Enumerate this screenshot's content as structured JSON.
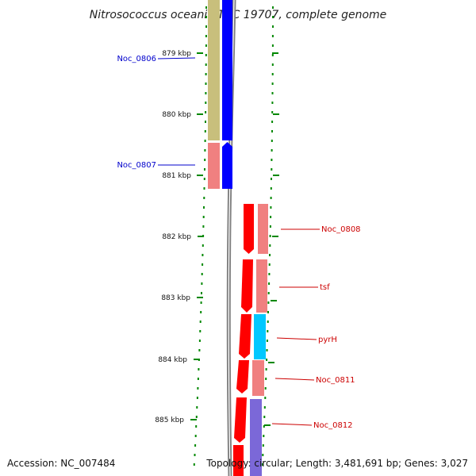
{
  "title": "Nitrosococcus oceani ATCC 19707, complete genome",
  "footer": {
    "accession": "Accession: NC_007484",
    "summary": "Topology: circular; Length: 3,481,691 bp; Genes: 3,027"
  },
  "colors": {
    "forward_strand": "#ff0000",
    "reverse_strand": "#0000ff",
    "cog_olive": "#c8bf7c",
    "cog_pink": "#f08080",
    "cog_cyan": "#00c8ff",
    "cog_purple": "#7b68d8",
    "tick_green": "#008800",
    "backbone": "#808080"
  },
  "kbp_ticks": [
    "879 kbp",
    "880 kbp",
    "881 kbp",
    "882 kbp",
    "883 kbp",
    "884 kbp",
    "885 kbp"
  ],
  "genes": [
    {
      "id": "Noc_0806",
      "strand": "reverse",
      "cog_color": "olive"
    },
    {
      "id": "Noc_0807",
      "strand": "reverse",
      "cog_color": "pink"
    },
    {
      "id": "Noc_0808",
      "strand": "forward",
      "cog_color": "pink"
    },
    {
      "id": "tsf",
      "strand": "forward",
      "cog_color": "pink"
    },
    {
      "id": "pyrH",
      "strand": "forward",
      "cog_color": "cyan"
    },
    {
      "id": "Noc_0811",
      "strand": "forward",
      "cog_color": "pink"
    },
    {
      "id": "Noc_0812",
      "strand": "forward",
      "cog_color": "purple"
    }
  ]
}
